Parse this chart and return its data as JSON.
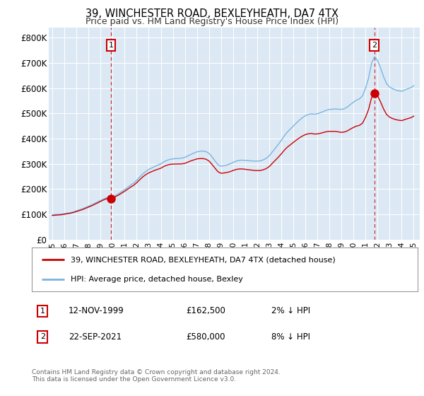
{
  "title": "39, WINCHESTER ROAD, BEXLEYHEATH, DA7 4TX",
  "subtitle": "Price paid vs. HM Land Registry's House Price Index (HPI)",
  "background_color": "#ffffff",
  "plot_bg_color": "#dce9f5",
  "ylabel_ticks": [
    "£0",
    "£100K",
    "£200K",
    "£300K",
    "£400K",
    "£500K",
    "£600K",
    "£700K",
    "£800K"
  ],
  "ytick_values": [
    0,
    100000,
    200000,
    300000,
    400000,
    500000,
    600000,
    700000,
    800000
  ],
  "ylim": [
    0,
    840000
  ],
  "xlim_start": 1994.7,
  "xlim_end": 2025.5,
  "hpi_line_color": "#7ab4e0",
  "price_line_color": "#cc0000",
  "marker_color": "#cc0000",
  "dashed_line_color": "#cc3333",
  "transaction1_x": 1999.87,
  "transaction1_y": 162500,
  "transaction1_label": "1",
  "transaction2_x": 2021.73,
  "transaction2_y": 580000,
  "transaction2_label": "2",
  "legend_label1": "39, WINCHESTER ROAD, BEXLEYHEATH, DA7 4TX (detached house)",
  "legend_label2": "HPI: Average price, detached house, Bexley",
  "table_row1": [
    "1",
    "12-NOV-1999",
    "£162,500",
    "2% ↓ HPI"
  ],
  "table_row2": [
    "2",
    "22-SEP-2021",
    "£580,000",
    "8% ↓ HPI"
  ],
  "footer": "Contains HM Land Registry data © Crown copyright and database right 2024.\nThis data is licensed under the Open Government Licence v3.0."
}
